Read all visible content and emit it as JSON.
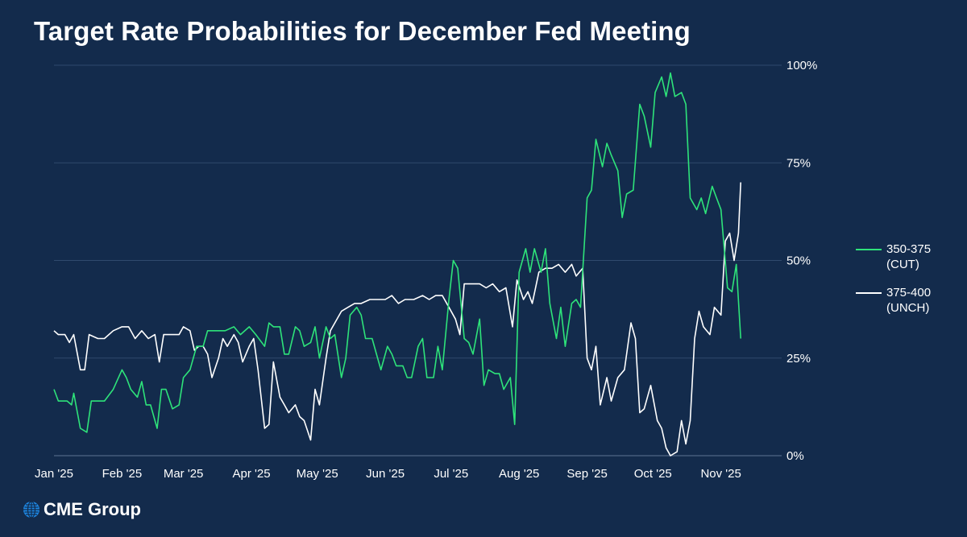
{
  "title": "Target Rate Probabilities for December Fed Meeting",
  "logo_text": "CME Group",
  "colors": {
    "background": "#132b4c",
    "grid": "#2f4a6d",
    "cut": "#2ee37a",
    "unch": "#ffffff"
  },
  "chart_data": {
    "type": "line",
    "title": "Target Rate Probabilities for December Fed Meeting",
    "xlabel": "",
    "ylabel": "",
    "x_ticks": [
      "Jan '25",
      "Feb '25",
      "Mar '25",
      "Apr '25",
      "May '25",
      "Jun '25",
      "Jul '25",
      "Aug '25",
      "Sep '25",
      "Oct '25",
      "Nov '25"
    ],
    "y_ticks": [
      "0%",
      "25%",
      "50%",
      "75%",
      "100%"
    ],
    "ylim": [
      0,
      100
    ],
    "xlim": [
      "2025-01-01",
      "2025-11-25"
    ],
    "grid": true,
    "legend": "right",
    "series": [
      {
        "name": "350-375\n(CUT)",
        "color": "#2ee37a",
        "points": [
          [
            "2025-01-01",
            17
          ],
          [
            "2025-01-03",
            14
          ],
          [
            "2025-01-07",
            14
          ],
          [
            "2025-01-09",
            13
          ],
          [
            "2025-01-10",
            16
          ],
          [
            "2025-01-13",
            7
          ],
          [
            "2025-01-16",
            6
          ],
          [
            "2025-01-18",
            14
          ],
          [
            "2025-01-21",
            14
          ],
          [
            "2025-01-24",
            14
          ],
          [
            "2025-01-28",
            17
          ],
          [
            "2025-02-01",
            22
          ],
          [
            "2025-02-03",
            20
          ],
          [
            "2025-02-05",
            17
          ],
          [
            "2025-02-08",
            15
          ],
          [
            "2025-02-10",
            19
          ],
          [
            "2025-02-12",
            13
          ],
          [
            "2025-02-14",
            13
          ],
          [
            "2025-02-17",
            7
          ],
          [
            "2025-02-19",
            17
          ],
          [
            "2025-02-21",
            17
          ],
          [
            "2025-02-24",
            12
          ],
          [
            "2025-02-27",
            13
          ],
          [
            "2025-03-01",
            20
          ],
          [
            "2025-03-04",
            22
          ],
          [
            "2025-03-07",
            28
          ],
          [
            "2025-03-10",
            28
          ],
          [
            "2025-03-12",
            32
          ],
          [
            "2025-03-16",
            32
          ],
          [
            "2025-03-20",
            32
          ],
          [
            "2025-03-24",
            33
          ],
          [
            "2025-03-27",
            31
          ],
          [
            "2025-03-31",
            33
          ],
          [
            "2025-04-03",
            31
          ],
          [
            "2025-04-07",
            28
          ],
          [
            "2025-04-09",
            34
          ],
          [
            "2025-04-11",
            33
          ],
          [
            "2025-04-14",
            33
          ],
          [
            "2025-04-16",
            26
          ],
          [
            "2025-04-18",
            26
          ],
          [
            "2025-04-21",
            33
          ],
          [
            "2025-04-23",
            32
          ],
          [
            "2025-04-25",
            28
          ],
          [
            "2025-04-28",
            29
          ],
          [
            "2025-04-30",
            33
          ],
          [
            "2025-05-02",
            25
          ],
          [
            "2025-05-05",
            33
          ],
          [
            "2025-05-07",
            30
          ],
          [
            "2025-05-09",
            31
          ],
          [
            "2025-05-12",
            20
          ],
          [
            "2025-05-14",
            25
          ],
          [
            "2025-05-16",
            36
          ],
          [
            "2025-05-19",
            38
          ],
          [
            "2025-05-21",
            36
          ],
          [
            "2025-05-23",
            30
          ],
          [
            "2025-05-26",
            30
          ],
          [
            "2025-05-28",
            26
          ],
          [
            "2025-05-30",
            22
          ],
          [
            "2025-06-02",
            28
          ],
          [
            "2025-06-04",
            26
          ],
          [
            "2025-06-06",
            23
          ],
          [
            "2025-06-09",
            23
          ],
          [
            "2025-06-11",
            20
          ],
          [
            "2025-06-13",
            20
          ],
          [
            "2025-06-16",
            28
          ],
          [
            "2025-06-18",
            30
          ],
          [
            "2025-06-20",
            20
          ],
          [
            "2025-06-23",
            20
          ],
          [
            "2025-06-25",
            28
          ],
          [
            "2025-06-27",
            22
          ],
          [
            "2025-06-30",
            40
          ],
          [
            "2025-07-02",
            50
          ],
          [
            "2025-07-04",
            48
          ],
          [
            "2025-07-07",
            30
          ],
          [
            "2025-07-09",
            29
          ],
          [
            "2025-07-11",
            26
          ],
          [
            "2025-07-14",
            35
          ],
          [
            "2025-07-16",
            18
          ],
          [
            "2025-07-18",
            22
          ],
          [
            "2025-07-21",
            21
          ],
          [
            "2025-07-23",
            21
          ],
          [
            "2025-07-25",
            17
          ],
          [
            "2025-07-28",
            20
          ],
          [
            "2025-07-30",
            8
          ],
          [
            "2025-08-01",
            47
          ],
          [
            "2025-08-04",
            53
          ],
          [
            "2025-08-06",
            47
          ],
          [
            "2025-08-08",
            53
          ],
          [
            "2025-08-11",
            47
          ],
          [
            "2025-08-13",
            53
          ],
          [
            "2025-08-15",
            39
          ],
          [
            "2025-08-18",
            30
          ],
          [
            "2025-08-20",
            38
          ],
          [
            "2025-08-22",
            28
          ],
          [
            "2025-08-25",
            39
          ],
          [
            "2025-08-27",
            40
          ],
          [
            "2025-08-29",
            38
          ],
          [
            "2025-09-01",
            66
          ],
          [
            "2025-09-03",
            68
          ],
          [
            "2025-09-05",
            81
          ],
          [
            "2025-09-08",
            74
          ],
          [
            "2025-09-10",
            80
          ],
          [
            "2025-09-12",
            77
          ],
          [
            "2025-09-15",
            73
          ],
          [
            "2025-09-17",
            61
          ],
          [
            "2025-09-19",
            67
          ],
          [
            "2025-09-22",
            68
          ],
          [
            "2025-09-25",
            90
          ],
          [
            "2025-09-27",
            87
          ],
          [
            "2025-09-30",
            79
          ],
          [
            "2025-10-02",
            93
          ],
          [
            "2025-10-05",
            97
          ],
          [
            "2025-10-07",
            92
          ],
          [
            "2025-10-09",
            98
          ],
          [
            "2025-10-11",
            92
          ],
          [
            "2025-10-14",
            93
          ],
          [
            "2025-10-16",
            90
          ],
          [
            "2025-10-18",
            66
          ],
          [
            "2025-10-21",
            63
          ],
          [
            "2025-10-23",
            66
          ],
          [
            "2025-10-25",
            62
          ],
          [
            "2025-10-28",
            69
          ],
          [
            "2025-10-30",
            66
          ],
          [
            "2025-11-01",
            63
          ],
          [
            "2025-11-04",
            43
          ],
          [
            "2025-11-06",
            42
          ],
          [
            "2025-11-08",
            49
          ],
          [
            "2025-11-10",
            30
          ]
        ]
      },
      {
        "name": "375-400\n(UNCH)",
        "color": "#ffffff",
        "points": [
          [
            "2025-01-01",
            32
          ],
          [
            "2025-01-03",
            31
          ],
          [
            "2025-01-06",
            31
          ],
          [
            "2025-01-08",
            29
          ],
          [
            "2025-01-10",
            31
          ],
          [
            "2025-01-13",
            22
          ],
          [
            "2025-01-15",
            22
          ],
          [
            "2025-01-17",
            31
          ],
          [
            "2025-01-21",
            30
          ],
          [
            "2025-01-24",
            30
          ],
          [
            "2025-01-28",
            32
          ],
          [
            "2025-02-01",
            33
          ],
          [
            "2025-02-04",
            33
          ],
          [
            "2025-02-07",
            30
          ],
          [
            "2025-02-10",
            32
          ],
          [
            "2025-02-13",
            30
          ],
          [
            "2025-02-16",
            31
          ],
          [
            "2025-02-18",
            24
          ],
          [
            "2025-02-20",
            31
          ],
          [
            "2025-02-24",
            31
          ],
          [
            "2025-02-27",
            31
          ],
          [
            "2025-03-01",
            33
          ],
          [
            "2025-03-04",
            32
          ],
          [
            "2025-03-06",
            27
          ],
          [
            "2025-03-08",
            28
          ],
          [
            "2025-03-10",
            28
          ],
          [
            "2025-03-12",
            26
          ],
          [
            "2025-03-14",
            20
          ],
          [
            "2025-03-17",
            25
          ],
          [
            "2025-03-19",
            30
          ],
          [
            "2025-03-21",
            28
          ],
          [
            "2025-03-24",
            31
          ],
          [
            "2025-03-26",
            29
          ],
          [
            "2025-03-28",
            24
          ],
          [
            "2025-03-31",
            28
          ],
          [
            "2025-04-02",
            30
          ],
          [
            "2025-04-04",
            22
          ],
          [
            "2025-04-07",
            7
          ],
          [
            "2025-04-09",
            8
          ],
          [
            "2025-04-11",
            24
          ],
          [
            "2025-04-14",
            15
          ],
          [
            "2025-04-16",
            13
          ],
          [
            "2025-04-18",
            11
          ],
          [
            "2025-04-21",
            13
          ],
          [
            "2025-04-23",
            10
          ],
          [
            "2025-04-25",
            9
          ],
          [
            "2025-04-28",
            4
          ],
          [
            "2025-04-30",
            17
          ],
          [
            "2025-05-02",
            13
          ],
          [
            "2025-05-05",
            25
          ],
          [
            "2025-05-07",
            32
          ],
          [
            "2025-05-09",
            34
          ],
          [
            "2025-05-12",
            37
          ],
          [
            "2025-05-15",
            38
          ],
          [
            "2025-05-18",
            39
          ],
          [
            "2025-05-21",
            39
          ],
          [
            "2025-05-25",
            40
          ],
          [
            "2025-05-28",
            40
          ],
          [
            "2025-06-01",
            40
          ],
          [
            "2025-06-04",
            41
          ],
          [
            "2025-06-07",
            39
          ],
          [
            "2025-06-10",
            40
          ],
          [
            "2025-06-14",
            40
          ],
          [
            "2025-06-18",
            41
          ],
          [
            "2025-06-21",
            40
          ],
          [
            "2025-06-24",
            41
          ],
          [
            "2025-06-27",
            41
          ],
          [
            "2025-06-30",
            38
          ],
          [
            "2025-07-03",
            35
          ],
          [
            "2025-07-05",
            31
          ],
          [
            "2025-07-07",
            44
          ],
          [
            "2025-07-10",
            44
          ],
          [
            "2025-07-14",
            44
          ],
          [
            "2025-07-17",
            43
          ],
          [
            "2025-07-20",
            44
          ],
          [
            "2025-07-23",
            42
          ],
          [
            "2025-07-26",
            43
          ],
          [
            "2025-07-29",
            33
          ],
          [
            "2025-07-31",
            45
          ],
          [
            "2025-08-03",
            40
          ],
          [
            "2025-08-05",
            42
          ],
          [
            "2025-08-07",
            39
          ],
          [
            "2025-08-10",
            47
          ],
          [
            "2025-08-13",
            48
          ],
          [
            "2025-08-16",
            48
          ],
          [
            "2025-08-19",
            49
          ],
          [
            "2025-08-22",
            47
          ],
          [
            "2025-08-25",
            49
          ],
          [
            "2025-08-27",
            46
          ],
          [
            "2025-08-30",
            48
          ],
          [
            "2025-09-01",
            25
          ],
          [
            "2025-09-03",
            22
          ],
          [
            "2025-09-05",
            28
          ],
          [
            "2025-09-07",
            13
          ],
          [
            "2025-09-10",
            20
          ],
          [
            "2025-09-12",
            14
          ],
          [
            "2025-09-15",
            20
          ],
          [
            "2025-09-18",
            22
          ],
          [
            "2025-09-21",
            34
          ],
          [
            "2025-09-23",
            30
          ],
          [
            "2025-09-25",
            11
          ],
          [
            "2025-09-27",
            12
          ],
          [
            "2025-09-30",
            18
          ],
          [
            "2025-10-03",
            9
          ],
          [
            "2025-10-05",
            7
          ],
          [
            "2025-10-07",
            2
          ],
          [
            "2025-10-09",
            0
          ],
          [
            "2025-10-12",
            1
          ],
          [
            "2025-10-14",
            9
          ],
          [
            "2025-10-16",
            3
          ],
          [
            "2025-10-18",
            9
          ],
          [
            "2025-10-20",
            30
          ],
          [
            "2025-10-22",
            37
          ],
          [
            "2025-10-24",
            33
          ],
          [
            "2025-10-27",
            31
          ],
          [
            "2025-10-29",
            38
          ],
          [
            "2025-11-01",
            36
          ],
          [
            "2025-11-03",
            55
          ],
          [
            "2025-11-05",
            57
          ],
          [
            "2025-11-07",
            50
          ],
          [
            "2025-11-09",
            57
          ],
          [
            "2025-11-10",
            70
          ]
        ]
      }
    ]
  }
}
